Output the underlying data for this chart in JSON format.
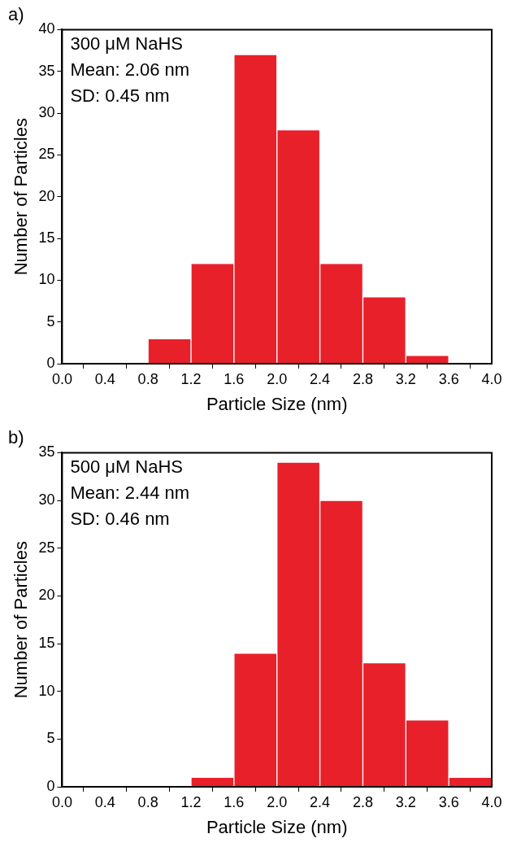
{
  "chart_data": [
    {
      "type": "histogram",
      "title": "a)",
      "xlabel": "Particle Size (nm)",
      "ylabel": "Number of Particles",
      "bins": [
        0.8,
        1.2,
        1.6,
        2.0,
        2.4,
        2.8,
        3.2,
        3.6
      ],
      "values": [
        3,
        12,
        37,
        28,
        12,
        8,
        1
      ],
      "color": "#e8202a",
      "xlim": [
        0,
        4
      ],
      "ylim": [
        0,
        40
      ],
      "xticks": [
        {
          "value": 0,
          "label": "0.0"
        },
        {
          "value": 0.4,
          "label": "0.4"
        },
        {
          "value": 0.8,
          "label": "0.8"
        },
        {
          "value": 1.2,
          "label": "1.2"
        },
        {
          "value": 1.6,
          "label": "1.6"
        },
        {
          "value": 2,
          "label": "2.0"
        },
        {
          "value": 2.4,
          "label": "2.4"
        },
        {
          "value": 2.8,
          "label": "2.8"
        },
        {
          "value": 3.2,
          "label": "3.2"
        },
        {
          "value": 3.6,
          "label": "3.6"
        },
        {
          "value": 4,
          "label": "4.0"
        }
      ],
      "yticks": [
        0,
        5,
        10,
        15,
        20,
        25,
        30,
        35,
        40
      ],
      "grid": false,
      "legend": false,
      "annotations": [
        "300 μM NaHS",
        "Mean: 2.06 nm",
        "SD: 0.45 nm"
      ]
    },
    {
      "type": "histogram",
      "title": "b)",
      "xlabel": "Particle Size (nm)",
      "ylabel": "Number of Particles",
      "bins": [
        1.2,
        1.6,
        2.0,
        2.4,
        2.8,
        3.2,
        3.6,
        4.0
      ],
      "values": [
        1,
        14,
        34,
        30,
        13,
        7,
        1
      ],
      "color": "#e8202a",
      "xlim": [
        0,
        4
      ],
      "ylim": [
        0,
        35
      ],
      "xticks": [
        {
          "value": 0,
          "label": "0.0"
        },
        {
          "value": 0.4,
          "label": "0.4"
        },
        {
          "value": 0.8,
          "label": "0.8"
        },
        {
          "value": 1.2,
          "label": "1.2"
        },
        {
          "value": 1.6,
          "label": "1.6"
        },
        {
          "value": 2,
          "label": "2.0"
        },
        {
          "value": 2.4,
          "label": "2.4"
        },
        {
          "value": 2.8,
          "label": "2.8"
        },
        {
          "value": 3.2,
          "label": "3.2"
        },
        {
          "value": 3.6,
          "label": "3.6"
        },
        {
          "value": 4,
          "label": "4.0"
        }
      ],
      "yticks": [
        0,
        5,
        10,
        15,
        20,
        25,
        30,
        35
      ],
      "grid": false,
      "legend": false,
      "annotations": [
        "500 μM NaHS",
        "Mean: 2.44 nm",
        "SD: 0.46 nm"
      ]
    }
  ]
}
